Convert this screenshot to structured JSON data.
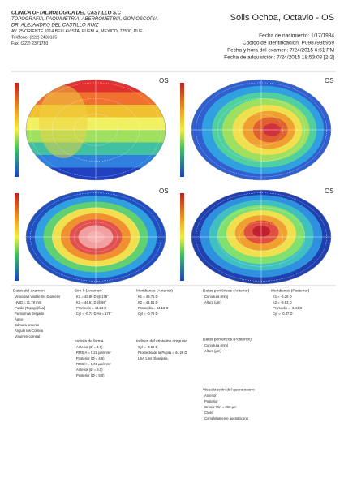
{
  "header": {
    "clinic": [
      "CLINICA OFTALMOLOGICA DEL CASTILLO S.C",
      "TOPOGRAFIA, PAQUIMETRIA, ABERROMETRIA, GONIOSCOPIA",
      "DR. ALEJANDRO DEL CASTILLO RUIZ",
      "AV. 25 ORIENTE 1014 BELLAVISTA, PUEBLA, MEXICO, 72500, PUE.",
      "Teléfono: (222) 2433185",
      "Fax: (222) 2371780"
    ],
    "patient": "Solis Ochoa, Octavio - OS",
    "details": [
      "Fecha de nacimiento: 1/17/1984",
      "Código de identificación: P0987936959",
      "Fecha y hora del examen: 7/24/2015 6:51 PM",
      "Fecha de adquisición: 7/24/2015 18:53:08 [2-2]"
    ]
  },
  "maps": [
    {
      "label": "OS"
    },
    {
      "label": "OS"
    },
    {
      "label": "OS"
    },
    {
      "label": "OS"
    }
  ],
  "panels": [
    {
      "title": "Datos del examen",
      "lines": [
        "Velocidad Visible Iris Diameter",
        "HVID = 11.78 mm",
        "Pupila (Topográfica)",
        "Punto más delgado",
        "Ápice",
        "Cámara anterior",
        "Ángulo Iris-Córnea",
        "Volumen corneal"
      ]
    },
    {
      "title": "Sim-k (Anterior)",
      "lines": [
        "K1 = 43.89 D @ 176°",
        "K2 = 44.61 D @ 86°",
        "Promedio = 44.24 D",
        "Cyl = -0.73 D Ax = 176°"
      ]
    },
    {
      "title": "Meridianos (Anterior)",
      "lines": [
        "K1 = 43.75 D",
        "K2 = 44.51 D",
        "Promedio = 44.13 D",
        "Cyl = -0.76 D"
      ]
    },
    {
      "title": "Datos periféricos (Anterior)",
      "lines": [
        "Curvatura (mm)",
        "Altura (µm)"
      ]
    },
    {
      "title": "Meridianos (Posterior)",
      "lines": [
        "K1 = -6.26 D",
        "K2 = -6.63 D",
        "Promedio = -6.44 D",
        "Cyl = -0.37 D"
      ]
    },
    {
      "title": "Datos periféricos (Posterior)",
      "lines": [
        "Curvatura (mm)",
        "Altura (µm)"
      ]
    },
    {
      "title": "Indices de forma",
      "lines": [
        "Anterior (Ø = 4.5)",
        "RMS/A = 0.21 µm/mm²",
        "Posterior (Ø = 4.5)",
        "RMS/A = 0.06 µm/mm²",
        "Anterior (Ø = 8.0)",
        "Posterior (Ø = 8.0)"
      ]
    },
    {
      "title": "Indices del cristalino irregular",
      "lines": [
        "Cyl = -0.60 D",
        "Promedio de la Pupila = 44.26 D",
        "LSA 1.94 Dlasepsia"
      ]
    },
    {
      "title": "Visualización del queratocono",
      "lines": [
        "Anterior",
        "Posterior",
        "Grosor Min = 268 µm",
        "Clase",
        "Completamente queratocono"
      ]
    }
  ]
}
